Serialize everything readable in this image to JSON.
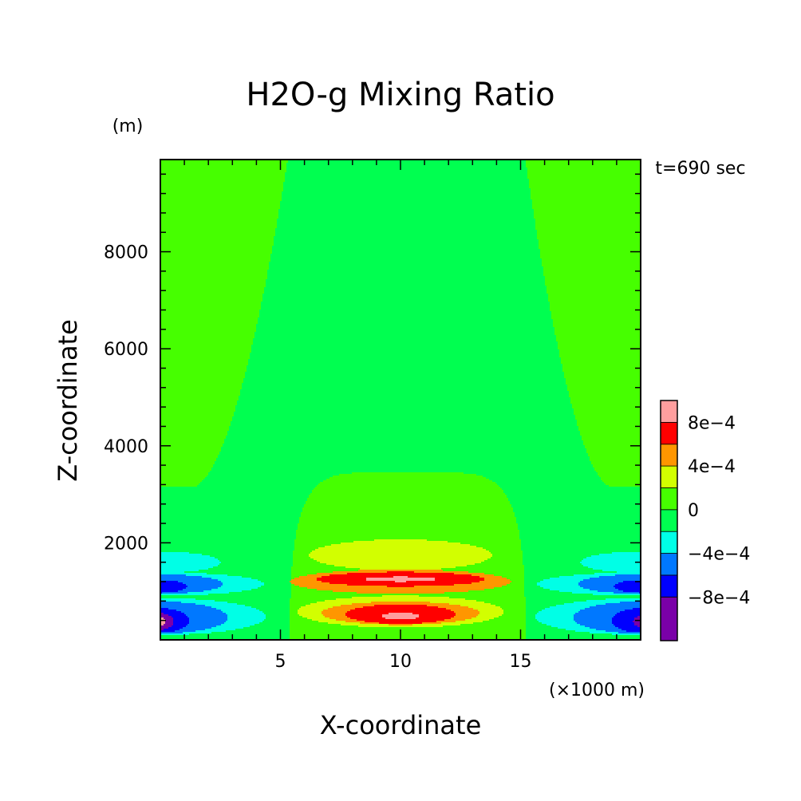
{
  "chart_data": {
    "type": "heatmap",
    "title": "H2O-g Mixing Ratio",
    "time_label": "t=690 sec",
    "xlabel": "X-coordinate",
    "ylabel": "Z-coordinate",
    "x_unit": "(×1000 m)",
    "y_unit": "(m)",
    "xlim": [
      0,
      20
    ],
    "ylim": [
      0,
      9900
    ],
    "x_ticks": [
      {
        "value": 5,
        "label": "5"
      },
      {
        "value": 10,
        "label": "10"
      },
      {
        "value": 15,
        "label": "15"
      }
    ],
    "y_ticks": [
      {
        "value": 2000,
        "label": "2000"
      },
      {
        "value": 4000,
        "label": "4000"
      },
      {
        "value": 6000,
        "label": "6000"
      },
      {
        "value": 8000,
        "label": "8000"
      }
    ],
    "x_minor_step": 1,
    "y_minor_step": 400,
    "colorbar": {
      "levels": [
        {
          "min": -0.0012,
          "max": -0.0008,
          "color": "#7a00a8"
        },
        {
          "min": -0.0008,
          "max": -0.0006,
          "color": "#0000ff"
        },
        {
          "min": -0.0006,
          "max": -0.0004,
          "color": "#0078ff"
        },
        {
          "min": -0.0004,
          "max": -0.0002,
          "color": "#00ffe6"
        },
        {
          "min": -0.0002,
          "max": 0,
          "color": "#00ff50"
        },
        {
          "min": 0,
          "max": 0.0002,
          "color": "#46ff00"
        },
        {
          "min": 0.0002,
          "max": 0.0004,
          "color": "#d2ff00"
        },
        {
          "min": 0.0004,
          "max": 0.0006,
          "color": "#ff9600"
        },
        {
          "min": 0.0006,
          "max": 0.0008,
          "color": "#ff0000"
        },
        {
          "min": 0.0008,
          "max": 0.001,
          "color": "#ff9e9e"
        }
      ],
      "labels": [
        {
          "value": 0.0008,
          "label": "8e−4"
        },
        {
          "value": 0.0004,
          "label": "4e−4"
        },
        {
          "value": 0,
          "label": "0"
        },
        {
          "value": -0.0004,
          "label": "−4e−4"
        },
        {
          "value": -0.0008,
          "label": "−8e−4"
        }
      ]
    },
    "field": {
      "background": -0.0001,
      "features": [
        {
          "kind": "corner",
          "x0": 0,
          "x1": 5.3,
          "z_flat": 3150,
          "value": 0.0001
        },
        {
          "kind": "corner",
          "x0": 15.2,
          "x1": 20,
          "z_flat": 3150,
          "value": 0.0001
        },
        {
          "kind": "dome",
          "x0": 5.4,
          "x1": 15.2,
          "top": 3450,
          "value": 0.0001
        },
        {
          "kind": "blob",
          "x": 10,
          "z": 1750,
          "rx": 3.8,
          "rz": 320,
          "value": 0.0003
        },
        {
          "kind": "blob",
          "x": 10,
          "z": 1200,
          "rx": 4.6,
          "rz": 250,
          "value": 0.0005
        },
        {
          "kind": "blob",
          "x": 10,
          "z": 1250,
          "rx": 3.5,
          "rz": 150,
          "value": 0.0007
        },
        {
          "kind": "blob",
          "x": 10,
          "z": 1250,
          "rx": 1.5,
          "rz": 50,
          "value": 0.0009
        },
        {
          "kind": "blob",
          "x": 10,
          "z": 580,
          "rx": 4.3,
          "rz": 330,
          "value": 0.0003
        },
        {
          "kind": "blob",
          "x": 10,
          "z": 550,
          "rx": 3.3,
          "rz": 240,
          "value": 0.0005
        },
        {
          "kind": "blob",
          "x": 10,
          "z": 530,
          "rx": 2.3,
          "rz": 200,
          "value": 0.0007
        },
        {
          "kind": "blob",
          "x": 10,
          "z": 490,
          "rx": 0.8,
          "rz": 70,
          "value": 0.0009
        },
        {
          "kind": "blob",
          "x": 0,
          "z": 1600,
          "rx": 2.5,
          "rz": 220,
          "value": -0.0003
        },
        {
          "kind": "blob",
          "x": 0,
          "z": 1150,
          "rx": 4.3,
          "rz": 240,
          "value": -0.0003
        },
        {
          "kind": "blob",
          "x": 0,
          "z": 1150,
          "rx": 2.6,
          "rz": 200,
          "value": -0.0005
        },
        {
          "kind": "blob",
          "x": 0,
          "z": 1100,
          "rx": 1.1,
          "rz": 130,
          "value": -0.0007
        },
        {
          "kind": "blob",
          "x": 0,
          "z": 480,
          "rx": 4.4,
          "rz": 380,
          "value": -0.0003
        },
        {
          "kind": "blob",
          "x": 0,
          "z": 460,
          "rx": 2.8,
          "rz": 330,
          "value": -0.0005
        },
        {
          "kind": "blob",
          "x": 0,
          "z": 400,
          "rx": 1.2,
          "rz": 250,
          "value": -0.0007
        },
        {
          "kind": "blob",
          "x": 0,
          "z": 380,
          "rx": 0.55,
          "rz": 170,
          "value": -0.0009
        },
        {
          "kind": "blob",
          "x": 0,
          "z": 380,
          "rx": 0.22,
          "rz": 90,
          "value": 0.0009
        },
        {
          "kind": "blob",
          "x": 20,
          "z": 1600,
          "rx": 2.5,
          "rz": 220,
          "value": -0.0003
        },
        {
          "kind": "blob",
          "x": 20,
          "z": 1150,
          "rx": 4.3,
          "rz": 240,
          "value": -0.0003
        },
        {
          "kind": "blob",
          "x": 20,
          "z": 1150,
          "rx": 2.6,
          "rz": 200,
          "value": -0.0005
        },
        {
          "kind": "blob",
          "x": 20,
          "z": 1100,
          "rx": 1.1,
          "rz": 130,
          "value": -0.0007
        },
        {
          "kind": "blob",
          "x": 20,
          "z": 480,
          "rx": 4.4,
          "rz": 380,
          "value": -0.0003
        },
        {
          "kind": "blob",
          "x": 20,
          "z": 460,
          "rx": 2.8,
          "rz": 330,
          "value": -0.0005
        },
        {
          "kind": "blob",
          "x": 20,
          "z": 400,
          "rx": 1.2,
          "rz": 250,
          "value": -0.0007
        },
        {
          "kind": "blob",
          "x": 20,
          "z": 380,
          "rx": 0.3,
          "rz": 110,
          "value": -0.0009
        }
      ]
    }
  }
}
